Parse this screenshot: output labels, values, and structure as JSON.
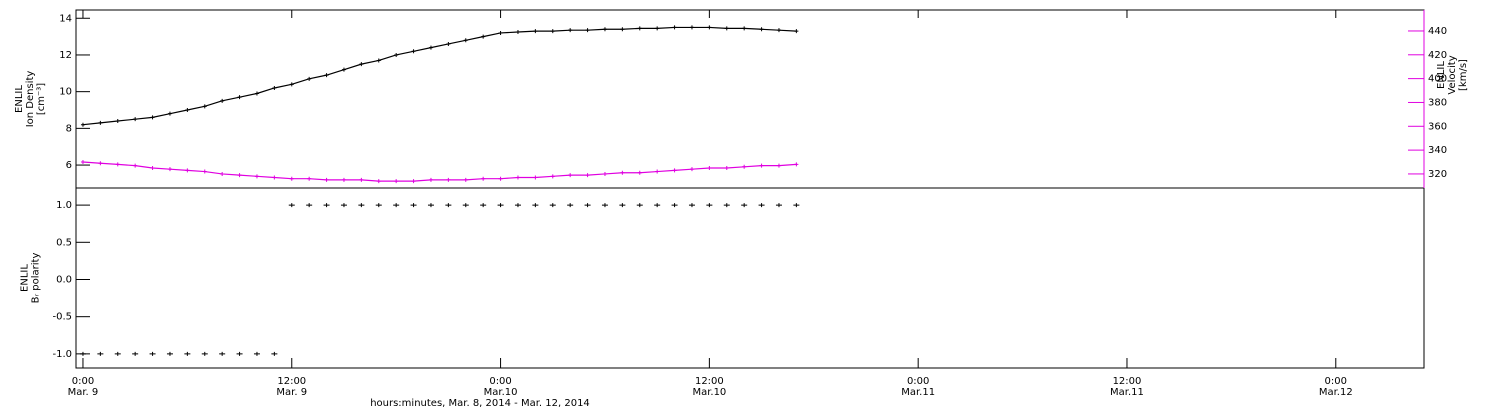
{
  "chart_data": [
    {
      "type": "line",
      "ylabel": [
        "ENLIL",
        "Ion Density",
        "[cm⁻³]"
      ],
      "y2label": [
        "ENLIL",
        "Velocity",
        "[km/s]"
      ],
      "x": [
        0,
        1,
        2,
        3,
        4,
        5,
        6,
        7,
        8,
        9,
        10,
        11,
        12,
        13,
        14,
        15,
        16,
        17,
        18,
        19,
        20,
        21,
        22,
        23,
        24,
        25,
        26,
        27,
        28,
        29,
        30,
        31,
        32,
        33,
        34,
        35,
        36,
        37,
        38,
        39,
        40,
        41
      ],
      "xlim": [
        -0.4,
        77.07
      ],
      "ylim": [
        4.75,
        14.45
      ],
      "yticks": [
        6,
        8,
        10,
        12,
        14
      ],
      "y2lim": [
        308.2,
        457.6
      ],
      "y2ticks": [
        320,
        340,
        360,
        380,
        400,
        420,
        440
      ],
      "y2color": "#e000e0",
      "series": [
        {
          "name": "Ion Density",
          "color": "#000000",
          "axis": "y",
          "values": [
            8.2,
            8.3,
            8.4,
            8.5,
            8.6,
            8.8,
            9.0,
            9.2,
            9.5,
            9.7,
            9.9,
            10.2,
            10.4,
            10.7,
            10.9,
            11.2,
            11.5,
            11.7,
            12.0,
            12.2,
            12.4,
            12.6,
            12.8,
            13.0,
            13.2,
            13.25,
            13.3,
            13.3,
            13.35,
            13.35,
            13.4,
            13.4,
            13.45,
            13.45,
            13.5,
            13.5,
            13.5,
            13.45,
            13.45,
            13.4,
            13.35,
            13.3
          ]
        },
        {
          "name": "Velocity",
          "color": "#e000e0",
          "axis": "y2",
          "values": [
            330,
            329,
            328,
            327,
            325,
            324,
            323,
            322,
            320,
            319,
            318,
            317,
            316,
            316,
            315,
            315,
            315,
            314,
            314,
            314,
            315,
            315,
            315,
            316,
            316,
            317,
            317,
            318,
            319,
            319,
            320,
            321,
            321,
            322,
            323,
            324,
            325,
            325,
            326,
            327,
            327,
            328
          ]
        }
      ]
    },
    {
      "type": "scatter",
      "ylabel": [
        "ENLIL",
        "Bᵣ polarity"
      ],
      "xlabel": "hours:minutes, Mar. 8, 2014 - Mar. 12, 2014",
      "x": [
        0,
        1,
        2,
        3,
        4,
        5,
        6,
        7,
        8,
        9,
        10,
        11,
        12,
        13,
        14,
        15,
        16,
        17,
        18,
        19,
        20,
        21,
        22,
        23,
        24,
        25,
        26,
        27,
        28,
        29,
        30,
        31,
        32,
        33,
        34,
        35,
        36,
        37,
        38,
        39,
        40,
        41
      ],
      "xlim": [
        -0.4,
        77.07
      ],
      "xticks": [
        {
          "value": 0,
          "label": "0:00",
          "date": "Mar. 9"
        },
        {
          "value": 12,
          "label": "12:00",
          "date": "Mar. 9"
        },
        {
          "value": 24,
          "label": "0:00",
          "date": "Mar.10"
        },
        {
          "value": 36,
          "label": "12:00",
          "date": "Mar.10"
        },
        {
          "value": 48,
          "label": "0:00",
          "date": "Mar.11"
        },
        {
          "value": 60,
          "label": "12:00",
          "date": "Mar.11"
        },
        {
          "value": 72,
          "label": "0:00",
          "date": "Mar.12"
        }
      ],
      "ylim": [
        -1.19,
        1.23
      ],
      "yticks": [
        {
          "value": -1,
          "label": "-1.0"
        },
        -0.5,
        {
          "value": 0,
          "label": "0.0"
        },
        0.5,
        {
          "value": 1,
          "label": "1.0"
        }
      ],
      "color": "#000000",
      "values": [
        -1,
        -1,
        -1,
        -1,
        -1,
        -1,
        -1,
        -1,
        -1,
        -1,
        -1,
        -1,
        1,
        1,
        1,
        1,
        1,
        1,
        1,
        1,
        1,
        1,
        1,
        1,
        1,
        1,
        1,
        1,
        1,
        1,
        1,
        1,
        1,
        1,
        1,
        1,
        1,
        1,
        1,
        1,
        1,
        1
      ]
    }
  ]
}
